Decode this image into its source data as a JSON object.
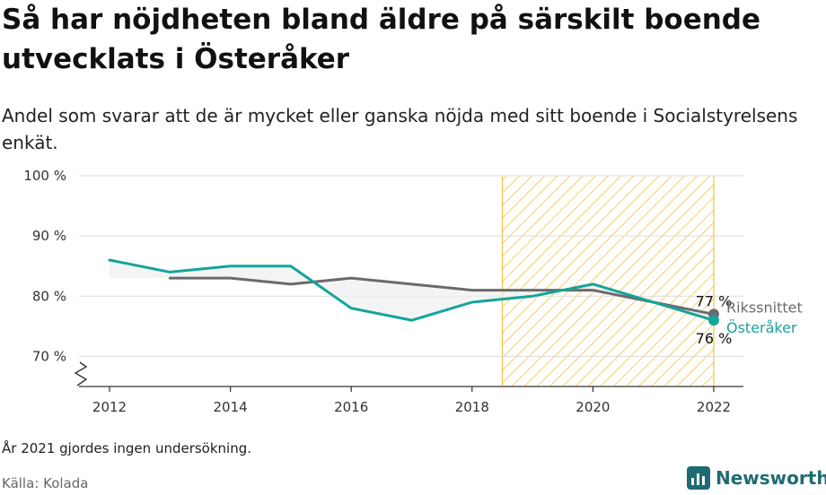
{
  "title": "Så har nöjdheten bland äldre på särskilt boende utvecklats i Österåker",
  "subtitle": "Andel som svarar att de är mycket eller ganska nöjda med sitt boende i Socialstyrelsens enkät.",
  "note": "År 2021 gjordes ingen undersökning.",
  "source": "Källa: Kolada",
  "brand": "Newsworthy",
  "colors": {
    "riket": "#6b6b6f",
    "osteraker": "#13a59a",
    "highlight": "#f6c244",
    "brand": "#1f6b72"
  },
  "chart_data": {
    "type": "line",
    "ylim": [
      65,
      100
    ],
    "xlim": [
      2011.5,
      2022.5
    ],
    "yticks": [
      70,
      80,
      90,
      100
    ],
    "ytick_labels": [
      "70 %",
      "80 %",
      "90 %",
      "100 %"
    ],
    "xticks": [
      "2012",
      "2014",
      "2016",
      "2018",
      "2020",
      "2022"
    ],
    "highlight_range": [
      2018.5,
      2022
    ],
    "axis_break": true,
    "series": [
      {
        "name": "Rikssnittet",
        "color": "#6b6b6f",
        "x": [
          2013,
          2014,
          2015,
          2016,
          2017,
          2018,
          2019,
          2020,
          2022
        ],
        "y": [
          83,
          83,
          82,
          83,
          82,
          81,
          81,
          81,
          77
        ],
        "end_label": "77 %"
      },
      {
        "name": "Österåker",
        "color": "#13a59a",
        "x": [
          2012,
          2013,
          2014,
          2015,
          2016,
          2017,
          2018,
          2019,
          2020,
          2022
        ],
        "y": [
          86,
          84,
          85,
          85,
          78,
          76,
          79,
          80,
          82,
          76
        ],
        "end_label": "76 %"
      }
    ]
  }
}
